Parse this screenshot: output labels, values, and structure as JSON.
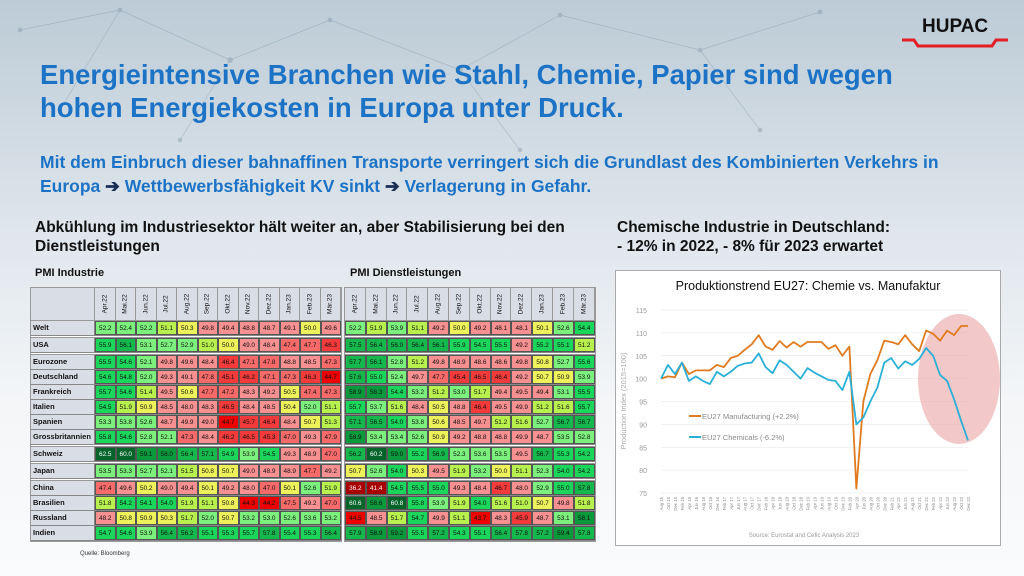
{
  "logo": {
    "text": "HUPAC"
  },
  "title": "Energieintensive Branchen wie Stahl, Chemie, Papier sind wegen hohen Energiekosten in Europa unter Druck.",
  "subtitle": {
    "part1": "Mit dem Einbruch dieser bahnaffinen Transporte verringert sich die Grundlast des Kombinierten Verkehrs in Europa ",
    "arrow": "➔",
    "part2": " Wettbewerbsfähigkeit KV sinkt ",
    "part3": " Verlagerung in Gefahr."
  },
  "left_heading": "Abkühlung im Industriesektor hält weiter an, aber Stabilisierung bei den Dienstleistungen",
  "right_heading_1": "Chemische Industrie in Deutschland:",
  "right_heading_2": "- 12% in 2022, - 8% für 2023 erwartet",
  "source_note": "Quelle: Bloomberg",
  "months": [
    "Apr.22",
    "Mai.22",
    "Jun.22",
    "Jul.22",
    "Aug.22",
    "Sep.22",
    "Okt.22",
    "Nov.22",
    "Dez.22",
    "Jan.23",
    "Feb.23",
    "Mär.23"
  ],
  "groups": [
    1,
    1,
    6,
    1,
    1,
    4
  ],
  "countries": [
    "Welt",
    "USA",
    "Eurozone",
    "Deutschland",
    "Frankreich",
    "Italien",
    "Spanien",
    "Grossbritannien",
    "Schweiz",
    "Japan",
    "China",
    "Brasilien",
    "Russland",
    "Indien"
  ],
  "pmi_industrie": {
    "title": "PMI Industrie",
    "rows": [
      [
        52.2,
        52.4,
        52.2,
        51.1,
        50.3,
        49.8,
        49.4,
        48.8,
        48.7,
        49.1,
        50.0,
        49.6
      ],
      [
        55.9,
        56.1,
        53.1,
        52.7,
        52.9,
        51.0,
        50.0,
        49.0,
        48.4,
        47.4,
        47.7,
        46.3
      ],
      [
        55.5,
        54.6,
        52.1,
        49.8,
        49.6,
        48.4,
        46.4,
        47.1,
        47.8,
        48.8,
        48.5,
        47.3
      ],
      [
        54.6,
        54.8,
        52.0,
        49.3,
        49.1,
        47.8,
        45.1,
        46.2,
        47.1,
        47.3,
        46.3,
        44.7
      ],
      [
        55.7,
        54.6,
        51.4,
        49.5,
        50.6,
        47.7,
        47.2,
        48.3,
        49.2,
        50.5,
        47.4,
        47.3
      ],
      [
        54.5,
        51.9,
        50.9,
        48.5,
        48.0,
        48.3,
        46.5,
        48.4,
        48.5,
        50.4,
        52.0,
        51.1
      ],
      [
        53.3,
        53.8,
        52.6,
        48.7,
        49.9,
        49.0,
        44.7,
        45.7,
        46.4,
        48.4,
        50.7,
        51.3
      ],
      [
        55.8,
        54.6,
        52.8,
        52.1,
        47.3,
        48.4,
        46.2,
        46.5,
        45.3,
        47.0,
        49.3,
        47.9
      ],
      [
        62.5,
        60.0,
        59.1,
        58.0,
        56.4,
        57.1,
        54.9,
        53.9,
        54.5,
        49.3,
        48.9,
        47.0
      ],
      [
        53.5,
        53.3,
        52.7,
        52.1,
        51.5,
        50.8,
        50.7,
        49.0,
        48.9,
        48.9,
        47.7,
        49.2
      ],
      [
        47.4,
        49.6,
        50.2,
        49.0,
        49.4,
        50.1,
        49.2,
        48.0,
        47.0,
        50.1,
        52.6,
        51.9
      ],
      [
        51.8,
        54.2,
        54.1,
        54.0,
        51.9,
        51.1,
        50.8,
        44.3,
        44.2,
        47.5,
        49.2,
        47.0
      ],
      [
        48.2,
        50.8,
        50.9,
        50.3,
        51.7,
        52.0,
        50.7,
        53.2,
        53.0,
        52.6,
        53.6,
        53.2
      ],
      [
        54.7,
        54.6,
        53.9,
        56.4,
        56.2,
        55.1,
        55.3,
        55.7,
        57.8,
        55.4,
        55.3,
        56.4
      ]
    ]
  },
  "pmi_dienst": {
    "title": "PMI Dienstleistungen",
    "rows": [
      [
        52.2,
        51.9,
        53.9,
        51.1,
        49.2,
        50.0,
        49.2,
        48.1,
        48.1,
        50.1,
        52.6,
        54.4
      ],
      [
        57.5,
        56.4,
        56.0,
        56.4,
        56.1,
        55.9,
        54.5,
        55.5,
        49.2,
        55.2,
        55.1,
        51.2
      ],
      [
        57.7,
        56.1,
        52.8,
        51.2,
        49.8,
        48.9,
        48.6,
        48.6,
        49.8,
        50.8,
        52.7,
        55.6
      ],
      [
        57.6,
        55.0,
        52.4,
        49.7,
        47.7,
        45.4,
        46.5,
        46.4,
        49.2,
        50.7,
        50.9,
        53.9
      ],
      [
        58.9,
        58.3,
        54.4,
        53.2,
        51.2,
        53.0,
        51.7,
        49.4,
        49.5,
        49.4,
        53.1,
        55.5
      ],
      [
        55.7,
        53.7,
        51.6,
        48.4,
        50.5,
        48.8,
        46.4,
        49.5,
        49.9,
        51.2,
        51.6,
        55.7
      ],
      [
        57.1,
        56.5,
        54.0,
        53.8,
        50.6,
        48.5,
        49.7,
        51.2,
        51.6,
        52.7,
        56.7,
        56.7
      ],
      [
        58.9,
        53.4,
        53.4,
        52.6,
        50.9,
        49.2,
        48.8,
        48.8,
        49.9,
        48.7,
        53.5,
        52.8
      ],
      [
        56.2,
        60.2,
        59.0,
        55.2,
        56.9,
        52.3,
        53.6,
        53.5,
        49.5,
        56.7,
        55.3,
        54.2
      ],
      [
        50.7,
        52.6,
        54.0,
        50.3,
        49.5,
        51.9,
        53.2,
        50.0,
        51.1,
        52.3,
        54.0,
        54.2
      ],
      [
        36.2,
        41.4,
        54.5,
        55.5,
        55.0,
        49.3,
        48.4,
        46.7,
        48.0,
        52.9,
        55.0,
        57.8
      ],
      [
        60.6,
        58.6,
        60.8,
        55.8,
        53.9,
        51.9,
        54.0,
        51.6,
        51.0,
        50.7,
        49.8,
        51.8
      ],
      [
        44.5,
        48.5,
        51.7,
        54.7,
        49.9,
        51.1,
        43.7,
        48.3,
        45.9,
        48.7,
        53.1,
        58.1
      ],
      [
        57.9,
        58.9,
        59.2,
        55.5,
        57.2,
        54.3,
        55.1,
        56.4,
        57.8,
        57.2,
        59.4,
        57.8
      ]
    ]
  },
  "chart_data": {
    "type": "line",
    "title": "Produktionstrend EU27: Chemie vs. Manufaktur",
    "ylabel": "Production Index (2015=100)",
    "xlabel": "",
    "source": "Source: Eurostat and Cefic Analysis 2023",
    "ylim": [
      75,
      115
    ],
    "yticks": [
      75,
      80,
      85,
      90,
      95,
      100,
      105,
      110,
      115
    ],
    "x": [
      "Aug 15",
      "Oct 15",
      "Dec 15",
      "Feb 16",
      "Apr 16",
      "Jun 16",
      "Aug 16",
      "Oct 16",
      "Dec 16",
      "Feb 17",
      "Apr 17",
      "Jun 17",
      "Aug 17",
      "Oct 17",
      "Dec 17",
      "Feb 18",
      "Apr 18",
      "Jun 18",
      "Aug 18",
      "Oct 18",
      "Dec 18",
      "Feb 19",
      "Apr 19",
      "Jun 19",
      "Aug 19",
      "Oct 19",
      "Dec 19",
      "Feb 20",
      "Apr 20",
      "Jun 20",
      "Aug 20",
      "Oct 20",
      "Dec 20",
      "Feb 21",
      "Apr 21",
      "Jun 21",
      "Aug 21",
      "Oct 21",
      "Dec 21",
      "Feb 22",
      "Apr 22",
      "Jun 22",
      "Aug 22",
      "Oct 22",
      "Dec 22"
    ],
    "series": [
      {
        "name": "EU27 Manufacturing (+2.2%)",
        "color": "#e07b1f",
        "values": [
          100,
          100.5,
          100.3,
          103.5,
          101,
          101.8,
          101.8,
          101.8,
          103,
          102.5,
          104.5,
          105,
          106.3,
          107.5,
          109.5,
          107,
          106.3,
          108.2,
          106.8,
          108,
          107,
          108,
          108,
          108,
          106.5,
          107.3,
          105,
          107,
          76,
          95,
          101,
          104,
          108.3,
          108,
          107.5,
          109.5,
          107.5,
          106,
          110.5,
          109.8,
          108.3,
          110.5,
          109.5,
          111.5,
          111.5
        ]
      },
      {
        "name": "EU27 Chemicals (-6.2%)",
        "color": "#2ab0d8",
        "values": [
          100,
          103,
          101,
          103.5,
          99.5,
          100.5,
          99.5,
          98.8,
          101.5,
          100.5,
          101.5,
          102.8,
          103.3,
          103.5,
          105.5,
          102.5,
          101.2,
          104,
          103,
          101.5,
          100,
          102.3,
          101.3,
          100.5,
          99.7,
          99.5,
          97.5,
          101.5,
          90,
          91.5,
          95,
          98,
          103.5,
          104.5,
          102.2,
          103.8,
          103,
          104.3,
          106.7,
          105,
          100.8,
          99.5,
          95.5,
          90.8,
          86.5
        ]
      }
    ],
    "legend": "center-left",
    "grid": true,
    "highlight": "red ellipse over 2022"
  }
}
